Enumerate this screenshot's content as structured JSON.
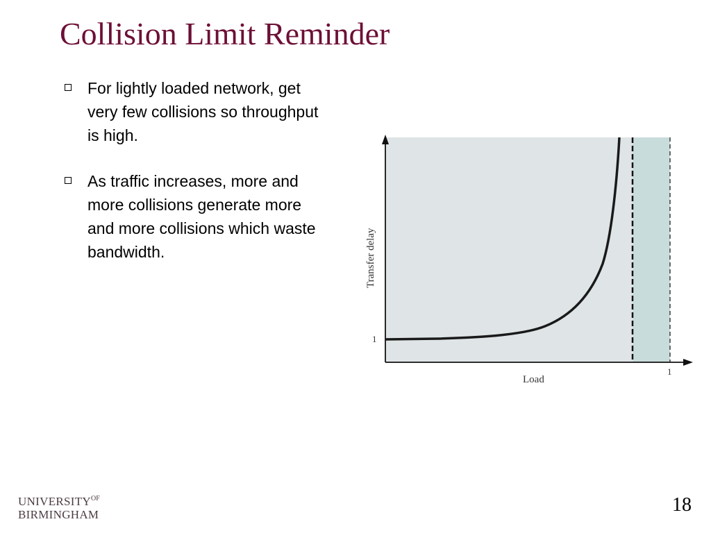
{
  "slide": {
    "title": "Collision Limit Reminder",
    "bullets": [
      "For lightly loaded network, get very few collisions so throughput is high.",
      "As traffic increases, more and more collisions generate more and more collisions which waste bandwidth."
    ],
    "page_number": "18"
  },
  "figure": {
    "y_axis_label": "Transfer delay",
    "x_axis_label": "Load",
    "y_tick_label": "1",
    "x_tick_label": "1",
    "colors": {
      "plot_background": "#dfe4e6",
      "saturation_region": "#c8dcdb",
      "curve": "#1a1a1a"
    }
  },
  "branding": {
    "university_line1": "UNIVERSITY",
    "university_of": "OF",
    "university_line2": "BIRMINGHAM"
  }
}
